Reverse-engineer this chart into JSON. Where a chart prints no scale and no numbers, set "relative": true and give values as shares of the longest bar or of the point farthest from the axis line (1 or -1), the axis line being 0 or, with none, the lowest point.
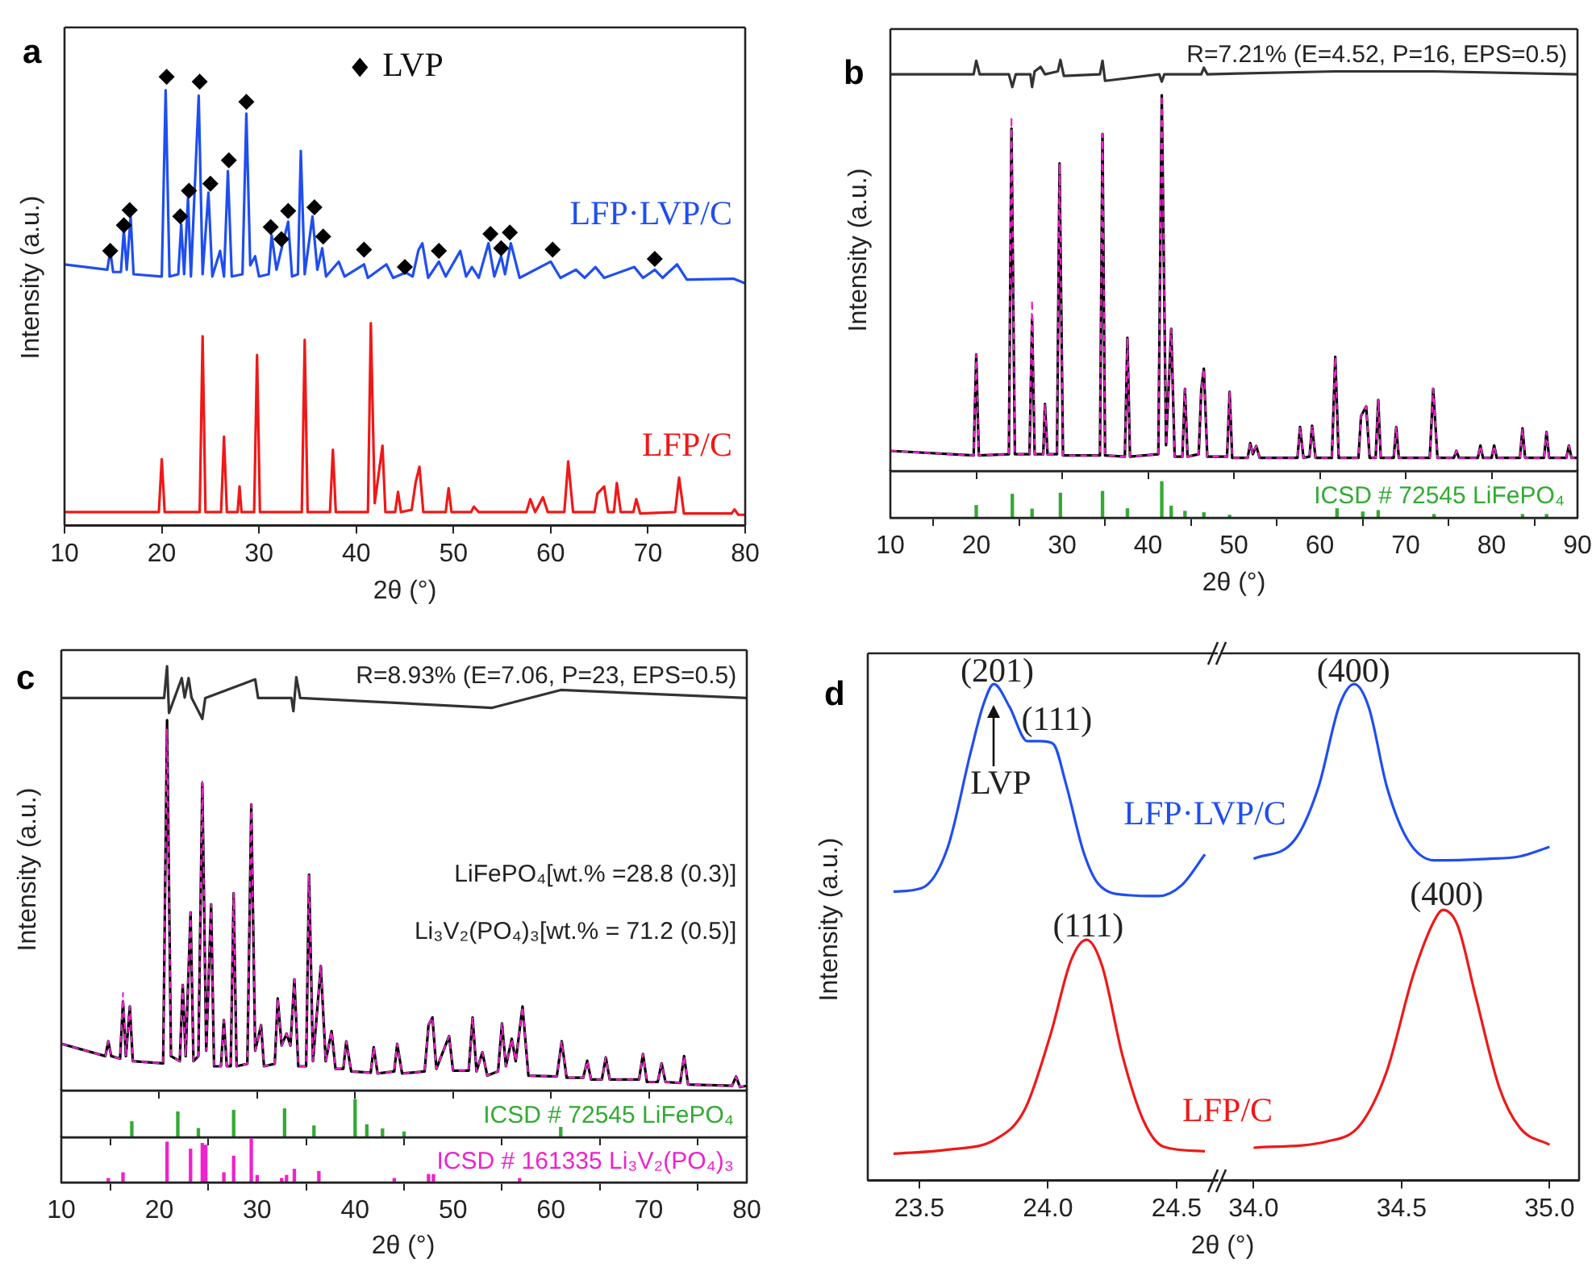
{
  "chart_data": [
    {
      "type": "line",
      "title": "a",
      "xlabel": "2θ (°)",
      "ylabel": "Intensity (a.u.)",
      "relative": true,
      "xlim": [
        10,
        80
      ],
      "xticks": [
        10,
        20,
        30,
        40,
        50,
        60,
        70,
        80
      ],
      "legend": "top",
      "series": [
        {
          "name": "LFP·LVP/C",
          "color": "#1f4ef0",
          "x": [
            10,
            14.4,
            14.7,
            15.0,
            15.8,
            16.1,
            16.4,
            16.8,
            17.1,
            20.0,
            20.4,
            20.8,
            21.7,
            22.0,
            22.3,
            22.7,
            23.0,
            23.8,
            24.2,
            24.8,
            25.2,
            26.0,
            26.4,
            26.8,
            27.2,
            28.3,
            28.7,
            29.1,
            29.6,
            30.0,
            31.0,
            31.3,
            31.8,
            32.4,
            33.0,
            33.4,
            34.0,
            34.3,
            34.7,
            35.5,
            36.0,
            36.5,
            36.9,
            38.2,
            38.8,
            40.8,
            41.2,
            43.1,
            43.8,
            45.1,
            45.8,
            46.4,
            46.8,
            47.4,
            48.5,
            49.2,
            50.7,
            51.3,
            51.9,
            52.6,
            53.6,
            54.2,
            54.9,
            55.3,
            55.9,
            56.8,
            60.0,
            61.0,
            62.6,
            63.5,
            64.6,
            65.5,
            68.6,
            69.5,
            70.7,
            71.5,
            73.0,
            74.0,
            78.8,
            80
          ],
          "values": [
            0.582,
            0.57,
            0.612,
            0.565,
            0.565,
            0.659,
            0.57,
            0.689,
            0.56,
            0.555,
            0.97,
            0.555,
            0.56,
            0.671,
            0.56,
            0.73,
            0.555,
            0.958,
            0.56,
            0.742,
            0.555,
            0.612,
            0.555,
            0.79,
            0.555,
            0.56,
            0.918,
            0.58,
            0.6,
            0.555,
            0.56,
            0.647,
            0.57,
            0.624,
            0.677,
            0.555,
            0.56,
            0.835,
            0.56,
            0.689,
            0.57,
            0.618,
            0.555,
            0.588,
            0.555,
            0.582,
            0.552,
            0.582,
            0.552,
            0.564,
            0.555,
            0.614,
            0.629,
            0.552,
            0.588,
            0.555,
            0.612,
            0.555,
            0.576,
            0.552,
            0.629,
            0.555,
            0.6,
            0.56,
            0.629,
            0.552,
            0.588,
            0.552,
            0.57,
            0.552,
            0.576,
            0.552,
            0.576,
            0.552,
            0.57,
            0.552,
            0.582,
            0.548,
            0.55,
            0.54
          ]
        },
        {
          "name": "LFP/C",
          "color": "#f01818",
          "x": [
            10,
            19.7,
            20.0,
            20.3,
            23.9,
            24.2,
            24.5,
            26.1,
            26.4,
            26.7,
            27.8,
            28.0,
            28.2,
            29.5,
            29.8,
            30.1,
            34.4,
            34.7,
            35.0,
            37.3,
            37.6,
            37.9,
            41.2,
            41.5,
            41.9,
            42.7,
            43.0,
            44.0,
            44.3,
            44.6,
            45.7,
            46.1,
            46.5,
            46.9,
            49.2,
            49.5,
            49.8,
            51.8,
            52.1,
            52.6,
            57.5,
            57.9,
            58.4,
            59.2,
            59.7,
            61.4,
            61.8,
            62.3,
            64.5,
            64.8,
            65.5,
            65.9,
            66.5,
            66.8,
            67.2,
            68.5,
            68.8,
            69.2,
            72.8,
            73.2,
            73.7,
            78.6,
            78.9,
            79.3,
            80
          ],
          "values": [
            0.03,
            0.03,
            0.148,
            0.03,
            0.03,
            0.422,
            0.03,
            0.03,
            0.198,
            0.03,
            0.03,
            0.087,
            0.03,
            0.03,
            0.38,
            0.03,
            0.03,
            0.414,
            0.03,
            0.03,
            0.169,
            0.03,
            0.03,
            0.451,
            0.05,
            0.178,
            0.03,
            0.03,
            0.075,
            0.03,
            0.035,
            0.095,
            0.131,
            0.03,
            0.03,
            0.083,
            0.03,
            0.03,
            0.042,
            0.03,
            0.03,
            0.059,
            0.03,
            0.063,
            0.03,
            0.03,
            0.143,
            0.03,
            0.03,
            0.071,
            0.087,
            0.03,
            0.03,
            0.095,
            0.03,
            0.03,
            0.059,
            0.027,
            0.03,
            0.107,
            0.027,
            0.027,
            0.036,
            0.024,
            0.024
          ]
        },
        {
          "name": "LVP",
          "type": "scatter",
          "marker": "diamond",
          "color": "#000000",
          "x": [
            14.7,
            16.1,
            16.7,
            20.5,
            21.9,
            22.8,
            23.9,
            25.0,
            26.9,
            28.7,
            31.2,
            32.3,
            33.0,
            35.7,
            36.6,
            40.8,
            45.0,
            48.5,
            53.8,
            54.9,
            55.8,
            60.2,
            70.7
          ],
          "values": [
            0.612,
            0.669,
            0.703,
            1.0,
            0.689,
            0.746,
            0.989,
            0.762,
            0.814,
            0.944,
            0.665,
            0.638,
            0.701,
            0.709,
            0.644,
            0.615,
            0.576,
            0.612,
            0.65,
            0.618,
            0.653,
            0.615,
            0.594
          ]
        }
      ]
    },
    {
      "type": "line",
      "title": "b",
      "ylabel": "Intensity (a.u.)",
      "relative": true,
      "tick_labels": false,
      "xlim": [
        10,
        90
      ],
      "xticks": [
        10,
        20,
        30,
        40,
        50,
        60,
        70,
        80,
        90
      ],
      "annotations": [
        "R=7.21% (E=4.52, P=16, EPS=0.5)"
      ],
      "series": [
        {
          "color": "#000000",
          "x": [
            10,
            19.7,
            20.0,
            20.3,
            23.8,
            24.1,
            24.5,
            26.2,
            26.5,
            26.8,
            27.8,
            28.0,
            28.3,
            29.4,
            29.7,
            30.1,
            34.4,
            34.7,
            35.0,
            37.3,
            37.6,
            37.9,
            41.2,
            41.6,
            42.1,
            42.7,
            43.1,
            44.0,
            44.3,
            44.6,
            45.9,
            46.2,
            46.5,
            46.9,
            49.2,
            49.5,
            49.8,
            51.6,
            51.9,
            52.2,
            52.6,
            53.0,
            57.4,
            57.7,
            58.1,
            58.8,
            59.1,
            59.5,
            61.4,
            61.8,
            62.2,
            64.5,
            64.8,
            65.4,
            65.8,
            66.5,
            66.8,
            67.1,
            68.6,
            68.9,
            69.2,
            72.8,
            73.2,
            73.7,
            75.6,
            75.9,
            76.2,
            78.4,
            78.7,
            79.0,
            80.0,
            80.3,
            80.6,
            83.3,
            83.6,
            83.9,
            86.1,
            86.4,
            86.7,
            88.7,
            89.0,
            89.3,
            90
          ],
          "values": [
            0.049,
            0.038,
            0.284,
            0.038,
            0.041,
            0.833,
            0.041,
            0.041,
            0.37,
            0.041,
            0.041,
            0.163,
            0.041,
            0.041,
            0.748,
            0.038,
            0.038,
            0.82,
            0.038,
            0.035,
            0.324,
            0.035,
            0.041,
            0.914,
            0.063,
            0.346,
            0.035,
            0.035,
            0.2,
            0.035,
            0.041,
            0.199,
            0.249,
            0.035,
            0.035,
            0.193,
            0.032,
            0.032,
            0.068,
            0.041,
            0.061,
            0.032,
            0.032,
            0.107,
            0.032,
            0.035,
            0.11,
            0.032,
            0.032,
            0.278,
            0.032,
            0.032,
            0.134,
            0.157,
            0.032,
            0.032,
            0.173,
            0.032,
            0.032,
            0.107,
            0.032,
            0.032,
            0.2,
            0.032,
            0.032,
            0.049,
            0.032,
            0.032,
            0.062,
            0.032,
            0.032,
            0.062,
            0.032,
            0.032,
            0.104,
            0.032,
            0.032,
            0.095,
            0.032,
            0.032,
            0.062,
            0.032,
            0.032
          ]
        },
        {
          "color": "#ee22cc",
          "line_style": "dashed",
          "x": [
            10,
            19.7,
            20.0,
            20.3,
            23.8,
            24.1,
            24.5,
            26.2,
            26.5,
            26.8,
            27.8,
            28.0,
            28.3,
            29.4,
            29.7,
            30.1,
            34.4,
            34.7,
            35.0,
            37.3,
            37.6,
            37.9,
            41.2,
            41.6,
            42.1,
            42.7,
            43.1,
            44.0,
            44.3,
            44.6,
            45.9,
            46.2,
            46.5,
            46.9,
            49.2,
            49.5,
            49.8,
            51.6,
            51.9,
            52.2,
            52.6,
            53.0,
            57.4,
            57.7,
            58.1,
            58.8,
            59.1,
            59.5,
            61.4,
            61.8,
            62.2,
            64.5,
            64.8,
            65.4,
            65.8,
            66.5,
            66.8,
            67.1,
            68.6,
            68.9,
            69.2,
            72.8,
            73.2,
            73.7,
            75.6,
            75.9,
            76.2,
            78.4,
            78.7,
            79.0,
            80.0,
            80.3,
            80.6,
            83.3,
            83.6,
            83.9,
            86.1,
            86.4,
            86.7,
            88.7,
            89.0,
            89.3,
            90
          ],
          "values": [
            0.049,
            0.038,
            0.284,
            0.038,
            0.041,
            0.862,
            0.041,
            0.041,
            0.416,
            0.041,
            0.041,
            0.163,
            0.041,
            0.041,
            0.748,
            0.038,
            0.038,
            0.82,
            0.038,
            0.035,
            0.324,
            0.035,
            0.041,
            0.914,
            0.063,
            0.346,
            0.035,
            0.035,
            0.2,
            0.035,
            0.041,
            0.199,
            0.249,
            0.035,
            0.035,
            0.193,
            0.032,
            0.032,
            0.068,
            0.041,
            0.061,
            0.032,
            0.032,
            0.107,
            0.032,
            0.035,
            0.11,
            0.032,
            0.032,
            0.278,
            0.032,
            0.032,
            0.134,
            0.157,
            0.032,
            0.032,
            0.173,
            0.032,
            0.032,
            0.107,
            0.032,
            0.032,
            0.2,
            0.032,
            0.032,
            0.049,
            0.032,
            0.032,
            0.062,
            0.032,
            0.032,
            0.062,
            0.032,
            0.032,
            0.104,
            0.032,
            0.032,
            0.095,
            0.032,
            0.032,
            0.062,
            0.032,
            0.032
          ]
        },
        {
          "color": "#333333",
          "x": [
            10,
            19.7,
            20.0,
            20.4,
            23.8,
            24.2,
            24.6,
            26.3,
            26.5,
            26.8,
            27.5,
            28.0,
            29.5,
            29.8,
            30.2,
            34.4,
            34.7,
            35.0,
            41.3,
            41.6,
            41.9,
            46.2,
            46.5,
            46.9,
            61.8,
            73.2,
            90
          ],
          "values": [
            0.965,
            0.965,
            0.998,
            0.965,
            0.965,
            0.934,
            0.965,
            0.965,
            0.934,
            0.972,
            0.983,
            0.965,
            0.972,
            1.0,
            0.961,
            0.965,
            0.998,
            0.949,
            0.965,
            0.947,
            0.965,
            0.965,
            0.981,
            0.965,
            0.972,
            0.972,
            0.965
          ]
        }
      ]
    },
    {
      "type": "bar",
      "xlabel": "2θ (°)",
      "relative": true,
      "xlim": [
        10,
        90
      ],
      "xticks": [
        10,
        20,
        30,
        40,
        50,
        60,
        70,
        80,
        90
      ],
      "series": [
        {
          "name": "ICSD # 72545 LiFePO₄",
          "color": "#33aa33",
          "x": [
            20.0,
            24.2,
            26.5,
            29.8,
            34.7,
            37.6,
            41.6,
            42.7,
            44.3,
            46.5,
            49.5,
            62.0,
            65.0,
            66.8,
            73.3,
            83.6,
            86.4
          ],
          "values": [
            0.34,
            0.65,
            0.24,
            0.68,
            0.73,
            0.25,
            1.0,
            0.32,
            0.18,
            0.14,
            0.07,
            0.25,
            0.16,
            0.2,
            0.09,
            0.09,
            0.09
          ]
        }
      ]
    },
    {
      "type": "line",
      "title": "c",
      "ylabel": "Intensity (a.u.)",
      "relative": true,
      "tick_labels": false,
      "xlim": [
        10,
        80
      ],
      "xticks": [
        10,
        20,
        30,
        40,
        50,
        60,
        70,
        80
      ],
      "annotations": [
        "R=8.93% (E=7.06, P=23, EPS=0.5)",
        "LiFePO₄[wt.% =28.8 (0.3)]",
        "Li₃V₂(PO₄)₃[wt.% = 71.2 (0.5)]"
      ],
      "series": [
        {
          "color": "#000000",
          "x": [
            10,
            14.5,
            14.8,
            15.1,
            16.0,
            16.3,
            16.6,
            17.0,
            17.3,
            20.4,
            20.8,
            21.2,
            22.1,
            22.4,
            22.7,
            23.2,
            23.5,
            24.0,
            24.4,
            24.8,
            25.3,
            25.6,
            26.3,
            26.6,
            26.9,
            27.3,
            27.6,
            27.9,
            29.0,
            29.4,
            29.8,
            30.4,
            30.7,
            31.8,
            32.1,
            32.5,
            33.0,
            33.4,
            33.8,
            34.2,
            35.0,
            35.3,
            35.7,
            36.5,
            37.0,
            37.6,
            38.0,
            38.8,
            39.1,
            39.6,
            41.6,
            41.9,
            42.3,
            44.0,
            44.3,
            44.8,
            47.1,
            47.5,
            47.9,
            48.3,
            49.6,
            50.0,
            51.6,
            52.0,
            52.4,
            53.0,
            53.5,
            54.6,
            55.0,
            55.4,
            56.0,
            56.4,
            57.1,
            57.7,
            60.6,
            61.1,
            61.6,
            63.3,
            63.7,
            64.1,
            65.2,
            65.6,
            66.0,
            69.0,
            69.4,
            69.8,
            70.9,
            71.3,
            71.7,
            73.2,
            73.6,
            74.0,
            78.5,
            78.9,
            79.3,
            80
          ],
          "values": [
            0.11,
            0.081,
            0.116,
            0.081,
            0.075,
            0.21,
            0.081,
            0.198,
            0.069,
            0.064,
            0.873,
            0.081,
            0.069,
            0.249,
            0.081,
            0.42,
            0.069,
            0.081,
            0.724,
            0.094,
            0.439,
            0.057,
            0.057,
            0.166,
            0.057,
            0.057,
            0.465,
            0.057,
            0.063,
            0.674,
            0.094,
            0.154,
            0.057,
            0.063,
            0.217,
            0.106,
            0.134,
            0.106,
            0.262,
            0.057,
            0.057,
            0.509,
            0.069,
            0.293,
            0.069,
            0.14,
            0.051,
            0.051,
            0.116,
            0.045,
            0.042,
            0.102,
            0.04,
            0.045,
            0.11,
            0.04,
            0.045,
            0.154,
            0.172,
            0.051,
            0.128,
            0.047,
            0.047,
            0.172,
            0.045,
            0.09,
            0.035,
            0.045,
            0.158,
            0.057,
            0.122,
            0.069,
            0.198,
            0.035,
            0.033,
            0.116,
            0.03,
            0.03,
            0.07,
            0.026,
            0.026,
            0.078,
            0.026,
            0.026,
            0.086,
            0.02,
            0.02,
            0.064,
            0.02,
            0.018,
            0.081,
            0.014,
            0.011,
            0.033,
            0.008,
            0.011
          ]
        },
        {
          "color": "#ee22cc",
          "line_style": "dashed",
          "x": [
            10,
            14.5,
            14.8,
            15.1,
            16.0,
            16.3,
            16.6,
            17.0,
            17.3,
            20.4,
            20.8,
            21.2,
            22.1,
            22.4,
            22.7,
            23.2,
            23.5,
            24.0,
            24.4,
            24.8,
            25.3,
            25.6,
            26.3,
            26.6,
            26.9,
            27.3,
            27.6,
            27.9,
            29.0,
            29.4,
            29.8,
            30.4,
            30.7,
            31.8,
            32.1,
            32.5,
            33.0,
            33.4,
            33.8,
            34.2,
            35.0,
            35.3,
            35.7,
            36.5,
            37.0,
            37.6,
            38.0,
            38.8,
            39.1,
            39.6,
            41.6,
            41.9,
            42.3,
            44.0,
            44.3,
            44.8,
            47.1,
            47.5,
            47.9,
            48.3,
            49.6,
            50.0,
            51.6,
            52.0,
            52.4,
            53.0,
            53.5,
            54.6,
            55.0,
            55.4,
            56.0,
            56.4,
            57.1,
            57.7,
            60.6,
            61.1,
            61.6,
            63.3,
            63.7,
            64.1,
            65.2,
            65.6,
            66.0,
            69.0,
            69.4,
            69.8,
            70.9,
            71.3,
            71.7,
            73.2,
            73.6,
            74.0,
            78.5,
            78.9,
            79.3,
            80
          ],
          "values": [
            0.11,
            0.081,
            0.116,
            0.081,
            0.075,
            0.23,
            0.081,
            0.198,
            0.069,
            0.064,
            0.853,
            0.081,
            0.069,
            0.249,
            0.081,
            0.42,
            0.069,
            0.081,
            0.728,
            0.094,
            0.439,
            0.057,
            0.057,
            0.166,
            0.057,
            0.057,
            0.465,
            0.057,
            0.063,
            0.674,
            0.094,
            0.154,
            0.057,
            0.063,
            0.217,
            0.106,
            0.134,
            0.106,
            0.262,
            0.057,
            0.057,
            0.509,
            0.069,
            0.293,
            0.069,
            0.14,
            0.051,
            0.051,
            0.116,
            0.045,
            0.042,
            0.102,
            0.04,
            0.045,
            0.11,
            0.04,
            0.045,
            0.154,
            0.172,
            0.051,
            0.128,
            0.047,
            0.047,
            0.172,
            0.045,
            0.09,
            0.035,
            0.045,
            0.158,
            0.057,
            0.122,
            0.069,
            0.198,
            0.035,
            0.033,
            0.116,
            0.03,
            0.03,
            0.07,
            0.026,
            0.026,
            0.078,
            0.026,
            0.026,
            0.086,
            0.02,
            0.02,
            0.064,
            0.02,
            0.018,
            0.081,
            0.014,
            0.011,
            0.033,
            0.008,
            0.011
          ]
        },
        {
          "color": "#333333",
          "x": [
            10,
            20.5,
            20.8,
            21.0,
            22.3,
            22.6,
            23.0,
            23.3,
            24.4,
            24.7,
            29.8,
            30.1,
            33.5,
            33.7,
            34.0,
            34.4,
            54.0,
            61.0,
            80
          ],
          "values": [
            0.925,
            0.925,
            1.0,
            0.89,
            0.972,
            0.926,
            0.972,
            0.926,
            0.876,
            0.925,
            0.969,
            0.925,
            0.925,
            0.894,
            0.974,
            0.925,
            0.902,
            0.944,
            0.925
          ]
        }
      ]
    },
    {
      "type": "bar",
      "relative": true,
      "tick_labels": false,
      "xlim": [
        10,
        80
      ],
      "xticks": [
        10,
        20,
        30,
        40,
        50,
        60,
        70,
        80
      ],
      "series": [
        {
          "name": "ICSD # 72545 LiFePO₄",
          "color": "#33aa33",
          "x": [
            17.2,
            21.9,
            24.0,
            27.6,
            32.8,
            35.8,
            40.0,
            41.2,
            42.8,
            45.0,
            61.0
          ],
          "values": [
            0.41,
            0.67,
            0.23,
            0.71,
            0.75,
            0.3,
            1.0,
            0.33,
            0.22,
            0.14,
            0.26
          ]
        }
      ]
    },
    {
      "type": "bar",
      "xlabel": "2θ (°)",
      "relative": true,
      "xlim": [
        10,
        80
      ],
      "xticks": [
        10,
        20,
        30,
        40,
        50,
        60,
        70,
        80
      ],
      "series": [
        {
          "name": "ICSD # 161335 Li₃V₂(PO₄)₃",
          "color": "#ee22cc",
          "x": [
            14.8,
            16.3,
            20.8,
            23.2,
            24.4,
            24.75,
            26.6,
            27.6,
            29.4,
            30.0,
            32.5,
            33.0,
            33.8,
            36.3,
            44.0,
            47.5,
            48.0,
            56.8
          ],
          "values": [
            0.09,
            0.22,
            0.92,
            0.76,
            0.89,
            0.85,
            0.22,
            0.6,
            1.0,
            0.16,
            0.09,
            0.16,
            0.3,
            0.25,
            0.09,
            0.18,
            0.18,
            0.09
          ]
        }
      ]
    },
    {
      "type": "line",
      "title": "d",
      "xlabel": "2θ (°)",
      "ylabel": "Intensity (a.u.)",
      "relative": true,
      "xlim": [
        23.3,
        24.66
      ],
      "xticks": [
        23.5,
        {
          "value": 24,
          "label": "24.0"
        },
        24.5
      ],
      "annotations": [
        "(201)",
        "(111)",
        "LVP",
        "(111)"
      ],
      "series": [
        {
          "name": "LFP·LVP/C",
          "color": "#1f4ef0",
          "x": [
            23.4,
            23.51,
            23.61,
            23.7,
            23.75,
            23.79,
            23.85,
            23.92,
            23.97,
            24.02,
            24.07,
            24.14,
            24.2,
            24.31,
            24.43,
            24.52,
            24.61
          ],
          "values": [
            0.582,
            0.589,
            0.67,
            0.863,
            0.96,
            1.0,
            0.955,
            0.885,
            0.885,
            0.88,
            0.799,
            0.659,
            0.595,
            0.575,
            0.573,
            0.595,
            0.657
          ]
        },
        {
          "name": "LFP/C",
          "color": "#f01818",
          "x": [
            23.4,
            23.61,
            23.8,
            23.91,
            24.01,
            24.09,
            24.15,
            24.21,
            24.29,
            24.37,
            24.45,
            24.61
          ],
          "values": [
            0.054,
            0.062,
            0.084,
            0.143,
            0.294,
            0.444,
            0.485,
            0.433,
            0.251,
            0.122,
            0.068,
            0.059
          ]
        }
      ]
    },
    {
      "type": "line",
      "relative": true,
      "xlim": [
        33.89,
        35.1
      ],
      "xticks": [
        {
          "value": 34,
          "label": "34.0"
        },
        34.5,
        {
          "value": 35,
          "label": "35.0"
        }
      ],
      "annotations": [
        "(400)",
        "(400)"
      ],
      "series": [
        {
          "color": "#1f4ef0",
          "x": [
            34.0,
            34.14,
            34.22,
            34.29,
            34.34,
            34.39,
            34.45,
            34.52,
            34.61,
            34.79,
            34.9,
            35.0
          ],
          "values": [
            0.648,
            0.687,
            0.794,
            0.957,
            1.0,
            0.952,
            0.794,
            0.687,
            0.645,
            0.648,
            0.653,
            0.672
          ]
        },
        {
          "color": "#f01818",
          "x": [
            34.0,
            34.25,
            34.36,
            34.45,
            34.54,
            34.61,
            34.64,
            34.69,
            34.75,
            34.83,
            34.9,
            35.0
          ],
          "values": [
            0.066,
            0.079,
            0.112,
            0.22,
            0.415,
            0.523,
            0.545,
            0.513,
            0.372,
            0.188,
            0.106,
            0.072
          ]
        }
      ]
    }
  ]
}
